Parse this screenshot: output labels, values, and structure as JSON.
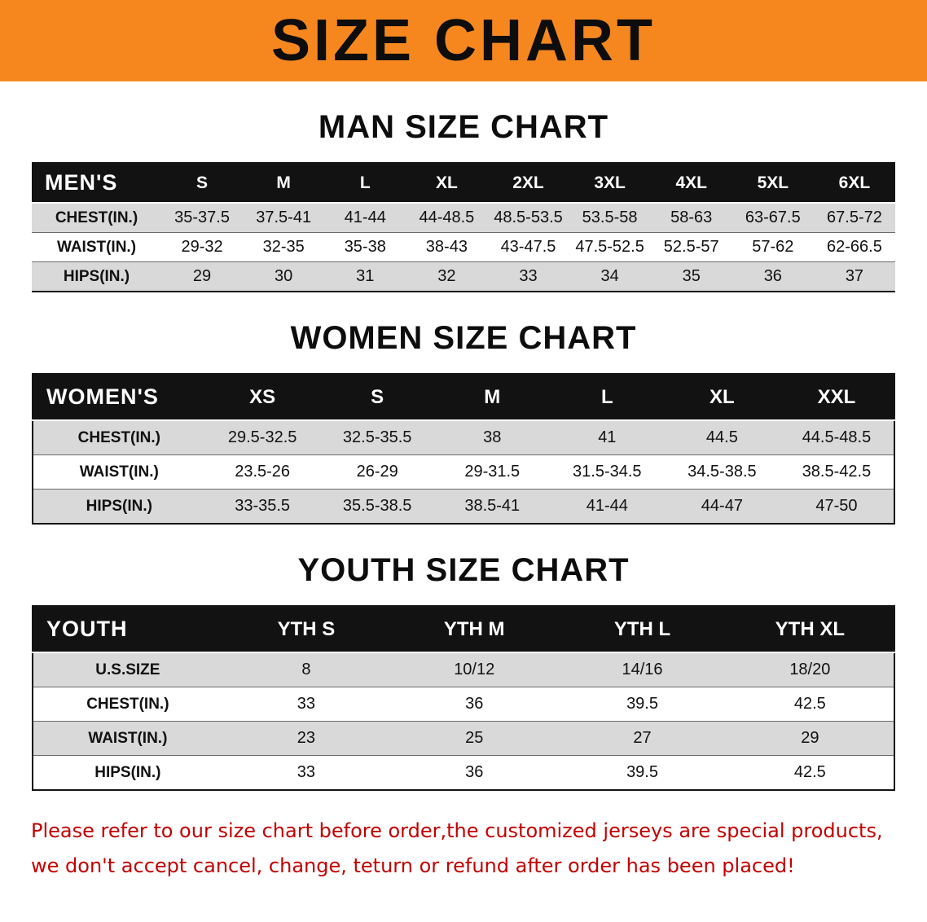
{
  "banner": {
    "title": "SIZE CHART",
    "bg_color": "#f6871f"
  },
  "colors": {
    "banner_orange": "#f6871f",
    "table_header_black": "#121212",
    "row_stripe_gray": "#d9d9d9",
    "footer_red": "#c40000"
  },
  "sections": [
    {
      "id": "men",
      "heading": "MAN SIZE CHART",
      "table": {
        "header": [
          "MEN'S",
          "S",
          "M",
          "L",
          "XL",
          "2XL",
          "3XL",
          "4XL",
          "5XL",
          "6XL"
        ],
        "rows": [
          [
            "CHEST(IN.)",
            "35-37.5",
            "37.5-41",
            "41-44",
            "44-48.5",
            "48.5-53.5",
            "53.5-58",
            "58-63",
            "63-67.5",
            "67.5-72"
          ],
          [
            "WAIST(IN.)",
            "29-32",
            "32-35",
            "35-38",
            "38-43",
            "43-47.5",
            "47.5-52.5",
            "52.5-57",
            "57-62",
            "62-66.5"
          ],
          [
            "HIPS(IN.)",
            "29",
            "30",
            "31",
            "32",
            "33",
            "34",
            "35",
            "36",
            "37"
          ]
        ]
      }
    },
    {
      "id": "women",
      "heading": "WOMEN SIZE CHART",
      "table": {
        "header": [
          "WOMEN'S",
          "XS",
          "S",
          "M",
          "L",
          "XL",
          "XXL"
        ],
        "rows": [
          [
            "CHEST(IN.)",
            "29.5-32.5",
            "32.5-35.5",
            "38",
            "41",
            "44.5",
            "44.5-48.5"
          ],
          [
            "WAIST(IN.)",
            "23.5-26",
            "26-29",
            "29-31.5",
            "31.5-34.5",
            "34.5-38.5",
            "38.5-42.5"
          ],
          [
            "HIPS(IN.)",
            "33-35.5",
            "35.5-38.5",
            "38.5-41",
            "41-44",
            "44-47",
            "47-50"
          ]
        ]
      }
    },
    {
      "id": "youth",
      "heading": "YOUTH SIZE CHART",
      "table": {
        "header": [
          "YOUTH",
          "YTH S",
          "YTH M",
          "YTH L",
          "YTH XL"
        ],
        "rows": [
          [
            "U.S.SIZE",
            "8",
            "10/12",
            "14/16",
            "18/20"
          ],
          [
            "CHEST(IN.)",
            "33",
            "36",
            "39.5",
            "42.5"
          ],
          [
            "WAIST(IN.)",
            "23",
            "25",
            "27",
            "29"
          ],
          [
            "HIPS(IN.)",
            "33",
            "36",
            "39.5",
            "42.5"
          ]
        ]
      }
    }
  ],
  "footer": {
    "line1": "Please refer to our size chart before order,the customized jerseys are special products,",
    "line2": "we don't accept cancel, change, teturn or refund after order has been placed!"
  }
}
